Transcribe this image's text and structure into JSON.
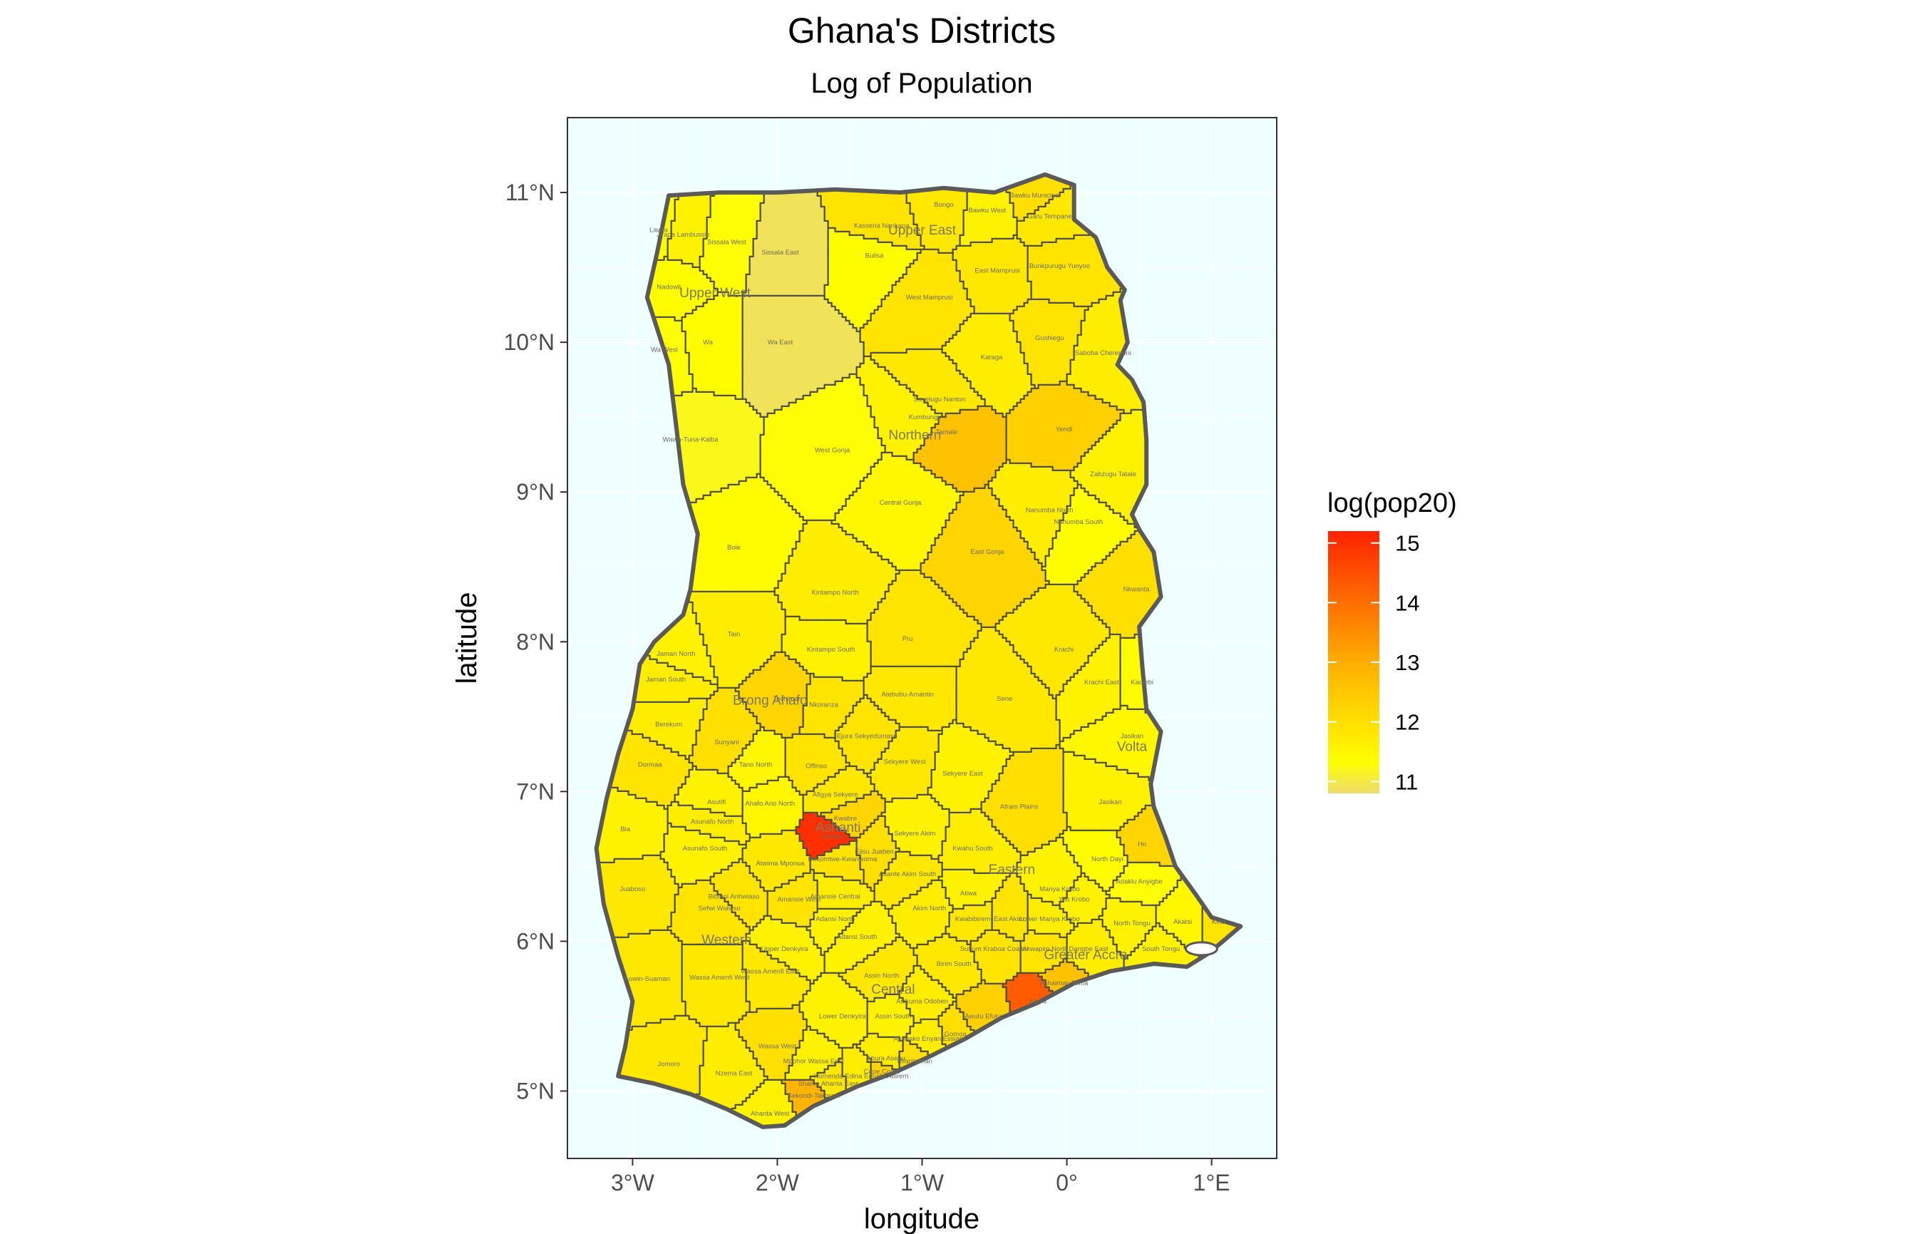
{
  "title": "Ghana's Districts",
  "subtitle": "Log of Population",
  "axes": {
    "xlabel": "longitude",
    "ylabel": "latitude",
    "xlim": [
      -3.45,
      1.45
    ],
    "ylim": [
      4.55,
      11.5
    ],
    "x_ticks": [
      {
        "value": -3,
        "label": "3°W"
      },
      {
        "value": -2,
        "label": "2°W"
      },
      {
        "value": -1,
        "label": "1°W"
      },
      {
        "value": 0,
        "label": "0°"
      },
      {
        "value": 1,
        "label": "1°E"
      }
    ],
    "y_ticks": [
      {
        "value": 5,
        "label": "5°N"
      },
      {
        "value": 6,
        "label": "6°N"
      },
      {
        "value": 7,
        "label": "7°N"
      },
      {
        "value": 8,
        "label": "8°N"
      },
      {
        "value": 9,
        "label": "9°N"
      },
      {
        "value": 10,
        "label": "10°N"
      },
      {
        "value": 11,
        "label": "11°N"
      }
    ]
  },
  "legend": {
    "title": "log(pop20)",
    "range": [
      10.8,
      15.2
    ],
    "breaks": [
      {
        "value": 15,
        "label": "15"
      },
      {
        "value": 14,
        "label": "14"
      },
      {
        "value": 13,
        "label": "13"
      },
      {
        "value": 12,
        "label": "12"
      },
      {
        "value": 11,
        "label": "11"
      }
    ]
  },
  "colors": {
    "panel_background": "#effefe",
    "border": "#5a5a5a",
    "scale_low": "#ecdc6e",
    "scale_mid": "#ffff00",
    "scale_high": "#ff2200",
    "water": "#ffffff"
  },
  "boundary": [
    [
      -3.1,
      5.1
    ],
    [
      -2.85,
      5.05
    ],
    [
      -2.6,
      4.98
    ],
    [
      -2.35,
      4.88
    ],
    [
      -2.1,
      4.76
    ],
    [
      -1.95,
      4.77
    ],
    [
      -1.75,
      4.9
    ],
    [
      -1.45,
      5.03
    ],
    [
      -1.2,
      5.12
    ],
    [
      -0.95,
      5.23
    ],
    [
      -0.7,
      5.35
    ],
    [
      -0.45,
      5.49
    ],
    [
      -0.2,
      5.59
    ],
    [
      0.05,
      5.72
    ],
    [
      0.3,
      5.8
    ],
    [
      0.6,
      5.85
    ],
    [
      0.83,
      5.83
    ],
    [
      0.98,
      5.92
    ],
    [
      1.2,
      6.1
    ],
    [
      1.0,
      6.16
    ],
    [
      0.9,
      6.3
    ],
    [
      0.75,
      6.5
    ],
    [
      0.68,
      6.7
    ],
    [
      0.6,
      6.9
    ],
    [
      0.58,
      7.05
    ],
    [
      0.65,
      7.4
    ],
    [
      0.55,
      7.55
    ],
    [
      0.52,
      7.85
    ],
    [
      0.5,
      8.1
    ],
    [
      0.65,
      8.3
    ],
    [
      0.6,
      8.6
    ],
    [
      0.5,
      8.75
    ],
    [
      0.45,
      8.85
    ],
    [
      0.55,
      9.05
    ],
    [
      0.55,
      9.35
    ],
    [
      0.53,
      9.6
    ],
    [
      0.45,
      9.75
    ],
    [
      0.35,
      9.85
    ],
    [
      0.42,
      10.0
    ],
    [
      0.37,
      10.28
    ],
    [
      0.4,
      10.35
    ],
    [
      0.28,
      10.5
    ],
    [
      0.2,
      10.7
    ],
    [
      0.05,
      10.82
    ],
    [
      0.05,
      11.05
    ],
    [
      -0.15,
      11.12
    ],
    [
      -0.5,
      11.0
    ],
    [
      -0.85,
      11.03
    ],
    [
      -1.15,
      11.0
    ],
    [
      -1.6,
      11.02
    ],
    [
      -2.0,
      11.0
    ],
    [
      -2.4,
      11.0
    ],
    [
      -2.75,
      10.98
    ],
    [
      -2.83,
      10.6
    ],
    [
      -2.9,
      10.3
    ],
    [
      -2.75,
      9.85
    ],
    [
      -2.7,
      9.45
    ],
    [
      -2.65,
      9.05
    ],
    [
      -2.55,
      8.72
    ],
    [
      -2.6,
      8.35
    ],
    [
      -2.65,
      8.18
    ],
    [
      -2.85,
      8.0
    ],
    [
      -2.95,
      7.85
    ],
    [
      -3.0,
      7.55
    ],
    [
      -3.1,
      7.25
    ],
    [
      -3.18,
      6.95
    ],
    [
      -3.25,
      6.62
    ],
    [
      -3.2,
      6.25
    ],
    [
      -3.1,
      5.9
    ],
    [
      -3.0,
      5.6
    ],
    [
      -3.05,
      5.3
    ],
    [
      -3.1,
      5.1
    ]
  ],
  "regions": [
    {
      "name": "Upper West",
      "lon": -2.43,
      "lat": 10.3
    },
    {
      "name": "Upper East",
      "lon": -1.0,
      "lat": 10.72
    },
    {
      "name": "Northern",
      "lon": -1.05,
      "lat": 9.35
    },
    {
      "name": "Brong Ahafo",
      "lon": -2.05,
      "lat": 7.58
    },
    {
      "name": "Ashanti",
      "lon": -1.58,
      "lat": 6.73
    },
    {
      "name": "Volta",
      "lon": 0.45,
      "lat": 7.27
    },
    {
      "name": "Eastern",
      "lon": -0.38,
      "lat": 6.45
    },
    {
      "name": "Western",
      "lon": -2.35,
      "lat": 5.98
    },
    {
      "name": "Central",
      "lon": -1.2,
      "lat": 5.65
    },
    {
      "name": "Greater Accra",
      "lon": 0.13,
      "lat": 5.88
    }
  ],
  "districts": [
    {
      "name": "Lawra",
      "lon": -2.82,
      "lat": 10.75,
      "logpop": 11.4
    },
    {
      "name": "Jirapa Lambussie",
      "lon": -2.65,
      "lat": 10.72,
      "logpop": 11.6
    },
    {
      "name": "Sissala West",
      "lon": -2.35,
      "lat": 10.67,
      "logpop": 11.3
    },
    {
      "name": "Sissala East",
      "lon": -1.98,
      "lat": 10.6,
      "logpop": 10.9
    },
    {
      "name": "Kassena Nankana",
      "lon": -1.28,
      "lat": 10.78,
      "logpop": 11.9
    },
    {
      "name": "Builsa",
      "lon": -1.33,
      "lat": 10.58,
      "logpop": 11.4
    },
    {
      "name": "Bongo",
      "lon": -0.85,
      "lat": 10.92,
      "logpop": 11.8
    },
    {
      "name": "Bawku Municipal",
      "lon": -0.22,
      "lat": 10.98,
      "logpop": 12.0
    },
    {
      "name": "Bawku West",
      "lon": -0.55,
      "lat": 10.88,
      "logpop": 11.6
    },
    {
      "name": "Garu Tempane",
      "lon": -0.12,
      "lat": 10.84,
      "logpop": 11.8
    },
    {
      "name": "Nadowli",
      "lon": -2.75,
      "lat": 10.37,
      "logpop": 11.4
    },
    {
      "name": "East Mamprusi",
      "lon": -0.48,
      "lat": 10.48,
      "logpop": 11.8
    },
    {
      "name": "Bunkpurugu Yunyoo",
      "lon": -0.05,
      "lat": 10.51,
      "logpop": 11.9
    },
    {
      "name": "West Mamprusi",
      "lon": -0.95,
      "lat": 10.3,
      "logpop": 11.9
    },
    {
      "name": "Wa",
      "lon": -2.48,
      "lat": 10.0,
      "logpop": 11.4
    },
    {
      "name": "Wa East",
      "lon": -1.98,
      "lat": 10.0,
      "logpop": 10.9
    },
    {
      "name": "Wa West",
      "lon": -2.78,
      "lat": 9.95,
      "logpop": 11.3
    },
    {
      "name": "Savelugu Nanton",
      "lon": -0.88,
      "lat": 9.62,
      "logpop": 11.8
    },
    {
      "name": "Kumbungu",
      "lon": -0.98,
      "lat": 9.5,
      "logpop": 11.6
    },
    {
      "name": "Karaga",
      "lon": -0.52,
      "lat": 9.9,
      "logpop": 11.7
    },
    {
      "name": "Gushiegu",
      "lon": -0.12,
      "lat": 10.03,
      "logpop": 11.9
    },
    {
      "name": "Saboba Chereponi",
      "lon": 0.25,
      "lat": 9.93,
      "logpop": 11.7
    },
    {
      "name": "West Gonja",
      "lon": -1.62,
      "lat": 9.28,
      "logpop": 11.3
    },
    {
      "name": "Tamale",
      "lon": -0.83,
      "lat": 9.4,
      "logpop": 12.6
    },
    {
      "name": "Yendi",
      "lon": -0.02,
      "lat": 9.42,
      "logpop": 12.3
    },
    {
      "name": "Wawa-Tuna-Kalba",
      "lon": -2.6,
      "lat": 9.35,
      "logpop": 11.2
    },
    {
      "name": "Zabzugu Tatale",
      "lon": 0.32,
      "lat": 9.12,
      "logpop": 11.6
    },
    {
      "name": "Central Gonja",
      "lon": -1.15,
      "lat": 8.93,
      "logpop": 11.5
    },
    {
      "name": "Nanumba North",
      "lon": -0.12,
      "lat": 8.88,
      "logpop": 11.7
    },
    {
      "name": "Nanumba South",
      "lon": 0.08,
      "lat": 8.8,
      "logpop": 11.4
    },
    {
      "name": "Bole",
      "lon": -2.3,
      "lat": 8.63,
      "logpop": 11.4
    },
    {
      "name": "East Gonja",
      "lon": -0.55,
      "lat": 8.6,
      "logpop": 12.2
    },
    {
      "name": "Nkwanta",
      "lon": 0.48,
      "lat": 8.35,
      "logpop": 12.0
    },
    {
      "name": "Kintampo North",
      "lon": -1.6,
      "lat": 8.33,
      "logpop": 11.7
    },
    {
      "name": "Tain",
      "lon": -2.3,
      "lat": 8.05,
      "logpop": 11.7
    },
    {
      "name": "Pru",
      "lon": -1.1,
      "lat": 8.02,
      "logpop": 11.9
    },
    {
      "name": "Krachi",
      "lon": -0.02,
      "lat": 7.95,
      "logpop": 11.8
    },
    {
      "name": "Kintampo South",
      "lon": -1.63,
      "lat": 7.95,
      "logpop": 11.6
    },
    {
      "name": "Jaman North",
      "lon": -2.7,
      "lat": 7.92,
      "logpop": 11.6
    },
    {
      "name": "Jaman South",
      "lon": -2.77,
      "lat": 7.75,
      "logpop": 11.7
    },
    {
      "name": "Krachi East",
      "lon": 0.24,
      "lat": 7.73,
      "logpop": 11.6
    },
    {
      "name": "Kadjebi",
      "lon": 0.52,
      "lat": 7.73,
      "logpop": 11.4
    },
    {
      "name": "Atebubu-Amantin",
      "lon": -1.1,
      "lat": 7.65,
      "logpop": 11.8
    },
    {
      "name": "Sene",
      "lon": -0.43,
      "lat": 7.62,
      "logpop": 11.8
    },
    {
      "name": "Techiman",
      "lon": -1.93,
      "lat": 7.62,
      "logpop": 12.2
    },
    {
      "name": "Nkoranza",
      "lon": -1.68,
      "lat": 7.58,
      "logpop": 11.9
    },
    {
      "name": "Berekum",
      "lon": -2.75,
      "lat": 7.45,
      "logpop": 11.7
    },
    {
      "name": "Sunyani",
      "lon": -2.35,
      "lat": 7.33,
      "logpop": 12.0
    },
    {
      "name": "Jasikan",
      "lon": 0.45,
      "lat": 7.37,
      "logpop": 11.5
    },
    {
      "name": "Ejura Sekyedumase",
      "lon": -1.38,
      "lat": 7.37,
      "logpop": 11.9
    },
    {
      "name": "Dormaa",
      "lon": -2.88,
      "lat": 7.18,
      "logpop": 11.9
    },
    {
      "name": "Tano North",
      "lon": -2.15,
      "lat": 7.18,
      "logpop": 11.5
    },
    {
      "name": "Offinso",
      "lon": -1.73,
      "lat": 7.17,
      "logpop": 11.9
    },
    {
      "name": "Sekyere West",
      "lon": -1.12,
      "lat": 7.2,
      "logpop": 11.8
    },
    {
      "name": "Sekyere East",
      "lon": -0.72,
      "lat": 7.12,
      "logpop": 11.6
    },
    {
      "name": "Afigya Sekyere",
      "lon": -1.6,
      "lat": 6.98,
      "logpop": 11.8
    },
    {
      "name": "Asutifi",
      "lon": -2.42,
      "lat": 6.93,
      "logpop": 11.6
    },
    {
      "name": "Ahafo Ano North",
      "lon": -2.05,
      "lat": 6.92,
      "logpop": 11.5
    },
    {
      "name": "Afram Plains",
      "lon": -0.33,
      "lat": 6.9,
      "logpop": 12.0
    },
    {
      "name": "Kwabre",
      "lon": -1.53,
      "lat": 6.82,
      "logpop": 12.2
    },
    {
      "name": "Jasikan",
      "lon": 0.3,
      "lat": 6.93,
      "logpop": 11.6
    },
    {
      "name": "Asunafo North",
      "lon": -2.45,
      "lat": 6.8,
      "logpop": 11.7
    },
    {
      "name": "Bia",
      "lon": -3.05,
      "lat": 6.75,
      "logpop": 11.6
    },
    {
      "name": "Kumasi",
      "lon": -1.62,
      "lat": 6.7,
      "logpop": 15.0
    },
    {
      "name": "Sekyere Akim",
      "lon": -1.05,
      "lat": 6.72,
      "logpop": 11.6
    },
    {
      "name": "Ho",
      "lon": 0.52,
      "lat": 6.65,
      "logpop": 12.2
    },
    {
      "name": "Kwahu South",
      "lon": -0.65,
      "lat": 6.62,
      "logpop": 11.7
    },
    {
      "name": "Ejisu Juaben",
      "lon": -1.33,
      "lat": 6.6,
      "logpop": 12.0
    },
    {
      "name": "Asunafo South",
      "lon": -2.5,
      "lat": 6.62,
      "logpop": 11.6
    },
    {
      "name": "Bosomtwe-Kwanwoma",
      "lon": -1.55,
      "lat": 6.55,
      "logpop": 11.9
    },
    {
      "name": "North Dayi",
      "lon": 0.28,
      "lat": 6.55,
      "logpop": 11.4
    },
    {
      "name": "Atwima Mponua",
      "lon": -1.98,
      "lat": 6.52,
      "logpop": 11.8
    },
    {
      "name": "Asante Akim South",
      "lon": -1.1,
      "lat": 6.45,
      "logpop": 11.8
    },
    {
      "name": "Juaboso",
      "lon": -3.0,
      "lat": 6.35,
      "logpop": 11.8
    },
    {
      "name": "Adaklu Anyigbe",
      "lon": 0.5,
      "lat": 6.4,
      "logpop": 11.3
    },
    {
      "name": "Manya Krobo",
      "lon": -0.05,
      "lat": 6.35,
      "logpop": 11.6
    },
    {
      "name": "Bibiani Anhwiaso",
      "lon": -2.3,
      "lat": 6.3,
      "logpop": 11.9
    },
    {
      "name": "Amansie Central",
      "lon": -1.6,
      "lat": 6.3,
      "logpop": 11.7
    },
    {
      "name": "Atiwa",
      "lon": -0.68,
      "lat": 6.32,
      "logpop": 11.6
    },
    {
      "name": "Yilo Krobo",
      "lon": 0.05,
      "lat": 6.28,
      "logpop": 11.6
    },
    {
      "name": "Sefwi Wiawso",
      "lon": -2.4,
      "lat": 6.22,
      "logpop": 11.9
    },
    {
      "name": "Amansie West",
      "lon": -1.85,
      "lat": 6.28,
      "logpop": 11.9
    },
    {
      "name": "Akim North",
      "lon": -0.95,
      "lat": 6.22,
      "logpop": 11.7
    },
    {
      "name": "Kwabibirem",
      "lon": -0.65,
      "lat": 6.15,
      "logpop": 11.8
    },
    {
      "name": "East Akim",
      "lon": -0.4,
      "lat": 6.15,
      "logpop": 11.9
    },
    {
      "name": "Adansi North",
      "lon": -1.6,
      "lat": 6.15,
      "logpop": 11.6
    },
    {
      "name": "Lower Manya Krobo",
      "lon": -0.12,
      "lat": 6.15,
      "logpop": 11.7
    },
    {
      "name": "North Tongu",
      "lon": 0.45,
      "lat": 6.12,
      "logpop": 11.6
    },
    {
      "name": "Akatsi",
      "lon": 0.8,
      "lat": 6.13,
      "logpop": 11.5
    },
    {
      "name": "Keta",
      "lon": 1.05,
      "lat": 6.13,
      "logpop": 11.9
    },
    {
      "name": "Adansi South",
      "lon": -1.45,
      "lat": 6.03,
      "logpop": 11.6
    },
    {
      "name": "Upper Denkyira",
      "lon": -1.95,
      "lat": 5.95,
      "logpop": 11.6
    },
    {
      "name": "Suhum Kraboa Coaltar",
      "lon": -0.5,
      "lat": 5.95,
      "logpop": 11.9
    },
    {
      "name": "Akwapim North",
      "lon": -0.15,
      "lat": 5.95,
      "logpop": 11.9
    },
    {
      "name": "Dangbe East",
      "lon": 0.15,
      "lat": 5.95,
      "logpop": 11.7
    },
    {
      "name": "South Tongu",
      "lon": 0.65,
      "lat": 5.95,
      "logpop": 11.6
    },
    {
      "name": "Birim South",
      "lon": -0.78,
      "lat": 5.85,
      "logpop": 11.8
    },
    {
      "name": "Wassa Amenfi East",
      "lon": -2.05,
      "lat": 5.8,
      "logpop": 11.8
    },
    {
      "name": "Wassa Amenfi West",
      "lon": -2.4,
      "lat": 5.76,
      "logpop": 11.8
    },
    {
      "name": "Aowin-Suaman",
      "lon": -2.9,
      "lat": 5.75,
      "logpop": 11.8
    },
    {
      "name": "Assin North",
      "lon": -1.28,
      "lat": 5.77,
      "logpop": 11.8
    },
    {
      "name": "Ashaiman Tema",
      "lon": -0.02,
      "lat": 5.72,
      "logpop": 12.6
    },
    {
      "name": "Accra",
      "lon": -0.2,
      "lat": 5.6,
      "logpop": 14.3
    },
    {
      "name": "Asikuma Odoben",
      "lon": -1.0,
      "lat": 5.6,
      "logpop": 11.7
    },
    {
      "name": "Awutu Efutu",
      "lon": -0.58,
      "lat": 5.5,
      "logpop": 12.3
    },
    {
      "name": "Gomoa",
      "lon": -0.77,
      "lat": 5.38,
      "logpop": 12.0
    },
    {
      "name": "Lower Denkyira",
      "lon": -1.55,
      "lat": 5.5,
      "logpop": 11.6
    },
    {
      "name": "Assin South",
      "lon": -1.2,
      "lat": 5.5,
      "logpop": 11.6
    },
    {
      "name": "Wassa West",
      "lon": -2.0,
      "lat": 5.3,
      "logpop": 12.0
    },
    {
      "name": "Mpohor Wassa East",
      "lon": -1.75,
      "lat": 5.2,
      "logpop": 11.6
    },
    {
      "name": "Ajumako Enyan Essiam",
      "lon": -0.95,
      "lat": 5.35,
      "logpop": 11.7
    },
    {
      "name": "Jomoro",
      "lon": -2.75,
      "lat": 5.18,
      "logpop": 11.8
    },
    {
      "name": "Nzema East",
      "lon": -2.3,
      "lat": 5.12,
      "logpop": 11.7
    },
    {
      "name": "Abura Asebu",
      "lon": -1.25,
      "lat": 5.22,
      "logpop": 11.7
    },
    {
      "name": "Mfantsiman",
      "lon": -1.05,
      "lat": 5.2,
      "logpop": 12.0
    },
    {
      "name": "Cape Coast",
      "lon": -1.28,
      "lat": 5.13,
      "logpop": 12.2
    },
    {
      "name": "Komenda Edina Eguafo Abirem",
      "lon": -1.42,
      "lat": 5.1,
      "logpop": 11.7
    },
    {
      "name": "Sekondi-Takoradi",
      "lon": -1.75,
      "lat": 4.97,
      "logpop": 12.9
    },
    {
      "name": "Shama Ahanta East",
      "lon": -1.65,
      "lat": 5.05,
      "logpop": 11.8
    },
    {
      "name": "Ahanta West",
      "lon": -2.05,
      "lat": 4.85,
      "logpop": 11.6
    }
  ]
}
